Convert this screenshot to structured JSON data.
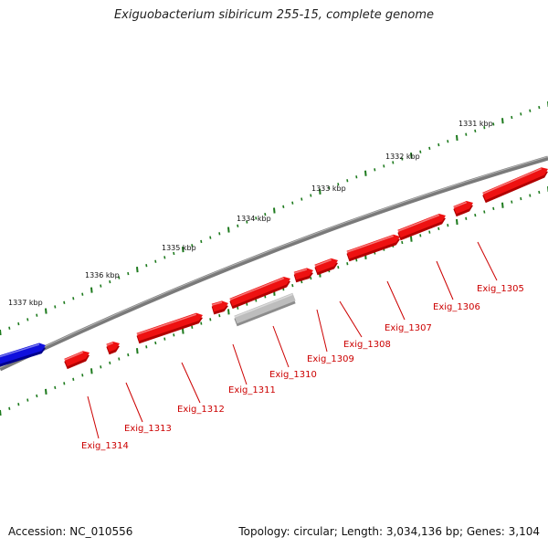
{
  "title": "Exiguobacterium sibiricum 255-15, complete genome",
  "footer": {
    "accession": "Accession: NC_010556",
    "topology": "Topology: circular; Length: 3,034,136 bp; Genes: 3,104"
  },
  "colors": {
    "backbone": "#7a7a7a",
    "gene_forward": "#ee1111",
    "gene_highlight": "#bdbdbd",
    "gene_blue": "#1010dd",
    "label": "#cc0000",
    "tick": "#1d7a1d"
  },
  "kbp_markers": [
    "1337 kbp",
    "1336 kbp",
    "1335 kbp",
    "1334 kbp",
    "1333 kbp",
    "1332 kbp",
    "1331 kbp"
  ],
  "genes": [
    "Exig_1314",
    "Exig_1313",
    "Exig_1312",
    "Exig_1311",
    "Exig_1310",
    "Exig_1309",
    "Exig_1308",
    "Exig_1307",
    "Exig_1306",
    "Exig_1305"
  ]
}
